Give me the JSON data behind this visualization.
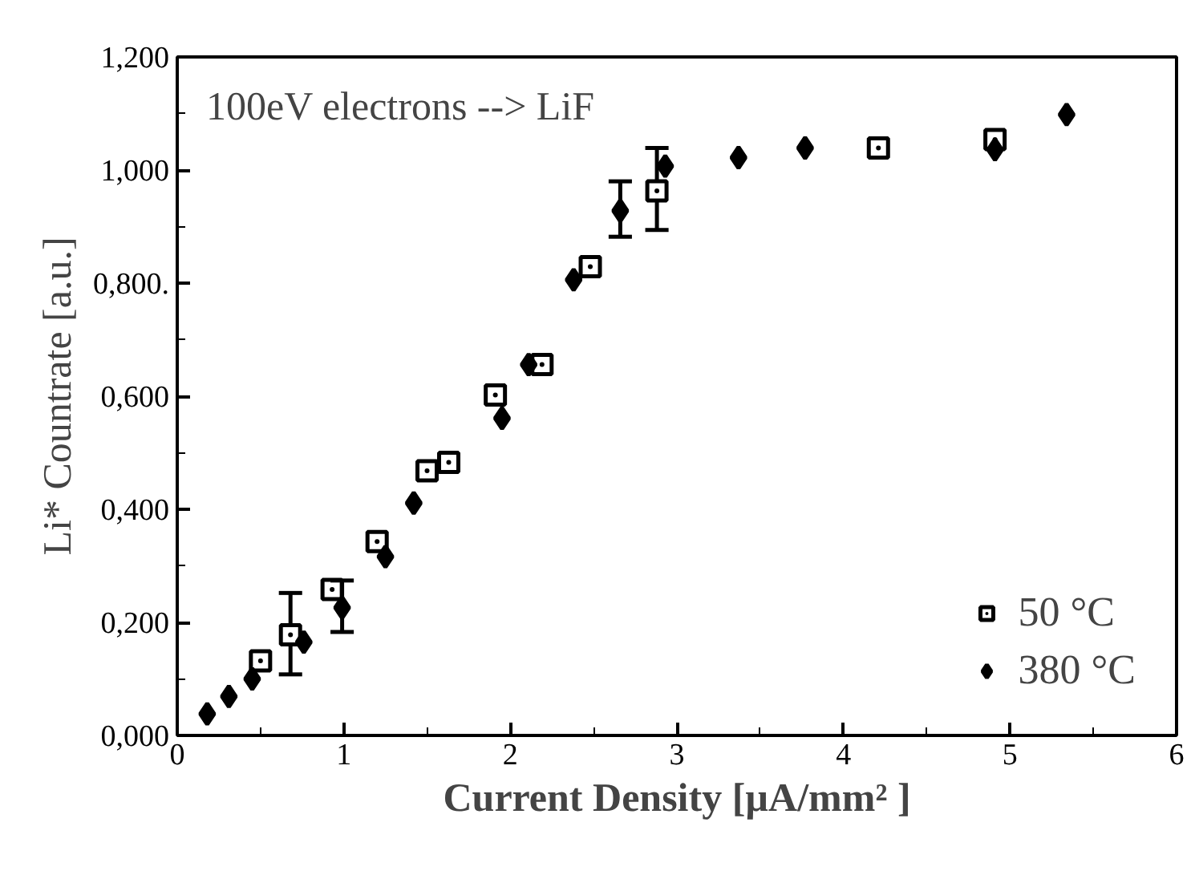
{
  "chart_data": {
    "type": "scatter",
    "xlabel": "Current Density [µA/mm² ]",
    "ylabel": "Li* Countrate [a.u.]",
    "annotations": [
      "100eV electrons --> LiF"
    ],
    "xlim": [
      0,
      6
    ],
    "xticks": [
      0,
      1,
      2,
      3,
      4,
      5,
      6
    ],
    "ylim": [
      0,
      1.2
    ],
    "yticks": [
      {
        "value": 0,
        "label": "0,000"
      },
      {
        "value": 0.2,
        "label": "0,200"
      },
      {
        "value": 0.4,
        "label": "0,400"
      },
      {
        "value": 0.6,
        "label": "0,600"
      },
      {
        "value": 0.8,
        "label": "0,800."
      },
      {
        "value": 1.0,
        "label": "1,000"
      },
      {
        "value": 1.2,
        "label": "1,200"
      }
    ],
    "grid": false,
    "legend": "bottom right",
    "series": [
      {
        "name": "50 °C",
        "color": "#000000",
        "marker": "square",
        "x": [
          0.5,
          0.68,
          0.93,
          1.2,
          1.5,
          1.63,
          1.91,
          2.19,
          2.48,
          2.88,
          4.21,
          4.91
        ],
        "values": [
          0.132,
          0.178,
          0.258,
          0.343,
          0.468,
          0.483,
          0.602,
          0.656,
          0.829,
          0.963,
          1.039,
          1.054
        ],
        "errors": [
          null,
          [
            0.108,
            0.252
          ],
          null,
          null,
          null,
          null,
          null,
          null,
          null,
          [
            0.894,
            1.039
          ],
          null,
          null
        ]
      },
      {
        "name": "380 °C",
        "color": "#000000",
        "marker": "diamond",
        "x": [
          0.18,
          0.31,
          0.45,
          0.76,
          0.99,
          1.25,
          1.42,
          1.95,
          2.11,
          2.38,
          2.66,
          2.93,
          3.37,
          3.77,
          4.91,
          5.34
        ],
        "values": [
          0.038,
          0.069,
          0.1,
          0.165,
          0.226,
          0.316,
          0.411,
          0.561,
          0.656,
          0.806,
          0.928,
          1.007,
          1.022,
          1.039,
          1.036,
          1.098
        ],
        "errors": [
          null,
          null,
          null,
          null,
          [
            0.183,
            0.274
          ],
          null,
          null,
          null,
          null,
          null,
          [
            0.882,
            0.98
          ],
          null,
          null,
          null,
          null,
          null
        ]
      }
    ]
  }
}
